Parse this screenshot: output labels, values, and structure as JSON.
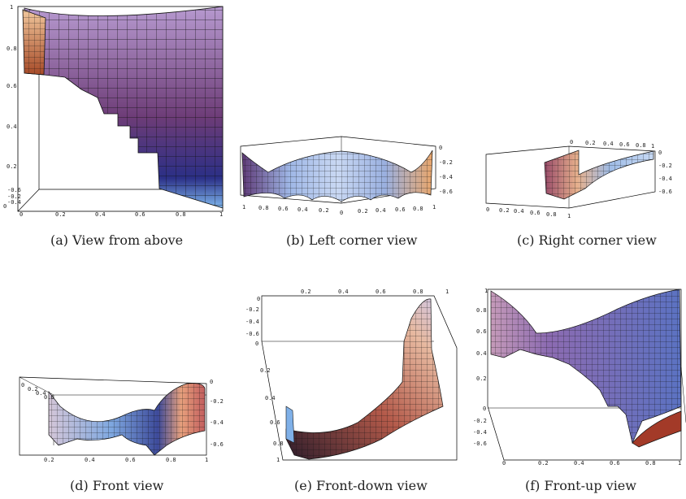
{
  "panels": [
    {
      "id": "a",
      "caption": "(a)  View from above",
      "ticks": {
        "left": [
          "1",
          "0.8",
          "0.6",
          "0.4",
          "0.2",
          "0"
        ],
        "bottom": [
          "0",
          "0.2",
          "0.4",
          "0.6",
          "0.8",
          "1"
        ],
        "corner": [
          "-0.6",
          "-0.2",
          "-0.4"
        ]
      }
    },
    {
      "id": "b",
      "caption": "(b)  Left corner view",
      "ticks": {
        "right": [
          "0",
          "-0.2",
          "-0.4",
          "-0.6"
        ],
        "bottom_left": [
          "1",
          "0.8",
          "0.6",
          "0.4",
          "0.2"
        ],
        "bottom_right": [
          "0",
          "0.2",
          "0.4",
          "0.6",
          "0.8",
          "1"
        ]
      }
    },
    {
      "id": "c",
      "caption": "(c)  Right corner view",
      "ticks": {
        "top": [
          "0",
          "0.2",
          "0.4",
          "0.6",
          "0.8",
          "1"
        ],
        "right": [
          "0",
          "-0.2",
          "-0.4",
          "-0.6"
        ],
        "bottom": [
          "0",
          "0.2",
          "0.4",
          "0.6",
          "0.8",
          "1"
        ]
      }
    },
    {
      "id": "d",
      "caption": "(d)  Front view",
      "ticks": {
        "top_left": [
          "0",
          "0.2",
          "0.4",
          "0.6"
        ],
        "right": [
          "0",
          "-0.2",
          "-0.4",
          "-0.6"
        ],
        "bottom": [
          "0.2",
          "0.4",
          "0.6",
          "0.8",
          "1"
        ]
      }
    },
    {
      "id": "e",
      "caption": "(e)  Front-down view",
      "ticks": {
        "top": [
          "0.2",
          "0.4",
          "0.6",
          "0.8",
          "1"
        ],
        "left_top": [
          "0",
          "-0.2",
          "-0.4",
          "-0.6"
        ],
        "left": [
          "0",
          "0.2",
          "0.4",
          "0.6",
          "0.8",
          "1"
        ]
      }
    },
    {
      "id": "f",
      "caption": "(f)  Front-up view",
      "ticks": {
        "left_top": [
          "1",
          "0.8",
          "0.6",
          "0.4",
          "0.2"
        ],
        "left_bottom": [
          "0",
          "-0.2",
          "-0.4",
          "-0.6"
        ],
        "bottom": [
          "0",
          "0.2",
          "0.4",
          "0.6",
          "0.8",
          "1"
        ]
      }
    }
  ],
  "colors": {
    "purple": "#8a5a93",
    "blue": "#76a6e3",
    "peach": "#e9a878",
    "red": "#a03020",
    "dark": "#3a1a3e"
  }
}
